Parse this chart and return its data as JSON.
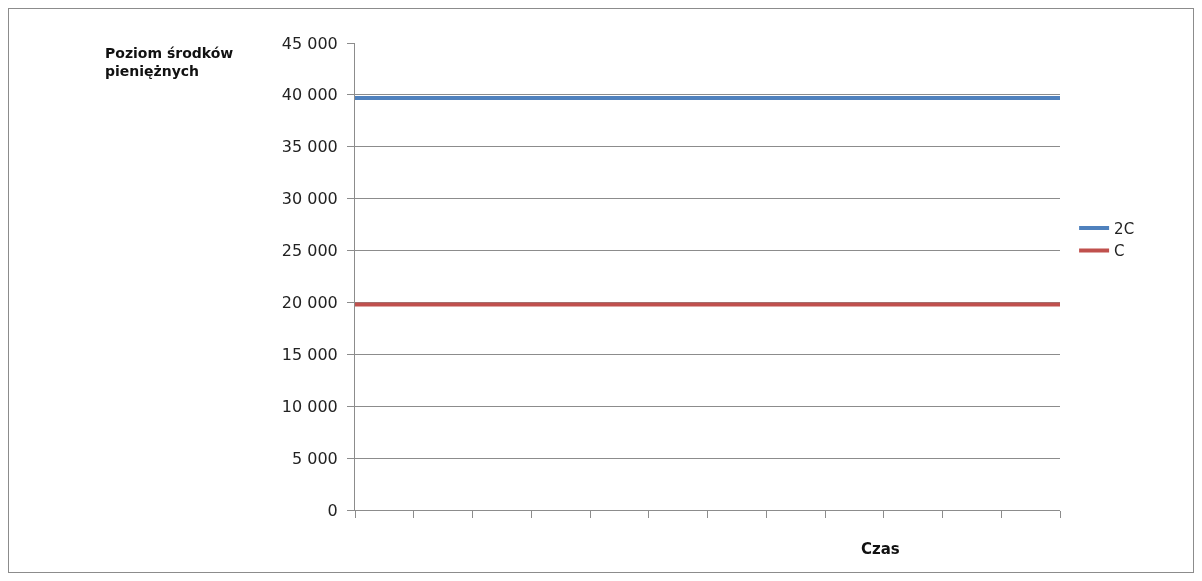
{
  "chart_data": {
    "type": "line",
    "ylabel": "Poziom środków pieniężnych",
    "xlabel": "Czas",
    "categories": [
      null,
      null,
      null,
      null,
      null,
      null,
      null,
      null,
      null,
      null,
      null,
      null,
      null
    ],
    "series": [
      {
        "name": "2C",
        "color": "#4f81bd",
        "values": [
          39700,
          39700,
          39700,
          39700,
          39700,
          39700,
          39700,
          39700,
          39700,
          39700,
          39700,
          39700,
          39700
        ]
      },
      {
        "name": "C",
        "color": "#c0504d",
        "values": [
          19800,
          19800,
          19800,
          19800,
          19800,
          19800,
          19800,
          19800,
          19800,
          19800,
          19800,
          19800,
          19800
        ]
      }
    ],
    "ylim": [
      0,
      45000
    ],
    "yticks": [
      {
        "value": 0,
        "label": "0"
      },
      {
        "value": 5000,
        "label": "5 000"
      },
      {
        "value": 10000,
        "label": "10 000"
      },
      {
        "value": 15000,
        "label": "15 000"
      },
      {
        "value": 20000,
        "label": "20 000"
      },
      {
        "value": 25000,
        "label": "25 000"
      },
      {
        "value": 30000,
        "label": "30 000"
      },
      {
        "value": 35000,
        "label": "35 000"
      },
      {
        "value": 40000,
        "label": "40 000"
      },
      {
        "value": 45000,
        "label": "45 000"
      }
    ],
    "grid": "y",
    "legend": "right",
    "marker": "none",
    "line_style": "solid"
  }
}
